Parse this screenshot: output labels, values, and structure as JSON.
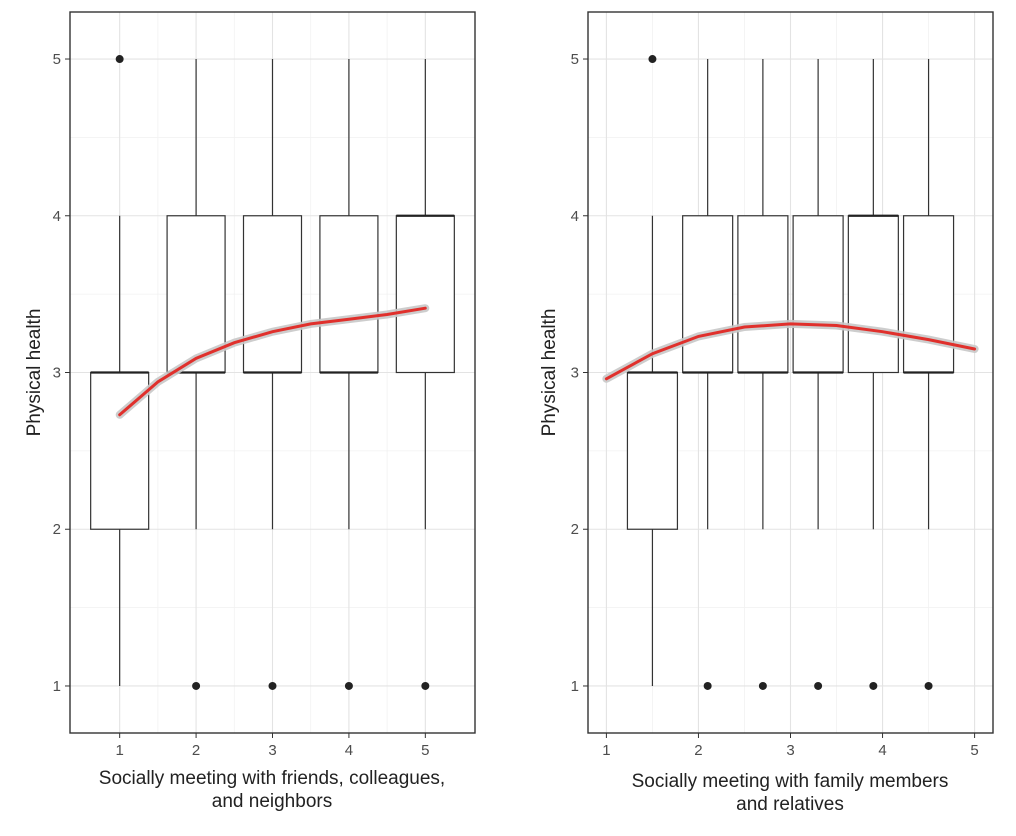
{
  "chart_data": [
    {
      "type": "box",
      "xlabel": [
        "Socially meeting with friends, colleagues,",
        "and neighbors"
      ],
      "ylabel": "Physical health",
      "xlim": [
        0.35,
        5.65
      ],
      "ylim": [
        0.7,
        5.3
      ],
      "x_ticks": [
        1,
        2,
        3,
        4,
        5
      ],
      "y_ticks": [
        1,
        2,
        3,
        4,
        5
      ],
      "grid": true,
      "boxes": [
        {
          "x": 1,
          "lower_whisker": 1,
          "q1": 2,
          "median": 3,
          "q3": 3,
          "upper_whisker": 4,
          "outliers": [
            5
          ]
        },
        {
          "x": 2,
          "lower_whisker": 2,
          "q1": 3,
          "median": 3,
          "q3": 4,
          "upper_whisker": 5,
          "outliers": [
            1
          ]
        },
        {
          "x": 3,
          "lower_whisker": 2,
          "q1": 3,
          "median": 3,
          "q3": 4,
          "upper_whisker": 5,
          "outliers": [
            1
          ]
        },
        {
          "x": 4,
          "lower_whisker": 2,
          "q1": 3,
          "median": 3,
          "q3": 4,
          "upper_whisker": 5,
          "outliers": [
            1
          ]
        },
        {
          "x": 5,
          "lower_whisker": 2,
          "q1": 3,
          "median": 4,
          "q3": 4,
          "upper_whisker": 5,
          "outliers": [
            1
          ]
        }
      ],
      "smooth_line": {
        "color": "#e0302c",
        "x": [
          1.0,
          1.5,
          2.0,
          2.5,
          3.0,
          3.5,
          4.0,
          4.5,
          5.0
        ],
        "y": [
          2.73,
          2.94,
          3.09,
          3.19,
          3.26,
          3.31,
          3.34,
          3.37,
          3.41
        ]
      }
    },
    {
      "type": "box",
      "xlabel": [
        "Socially meeting with family members",
        "and relatives"
      ],
      "ylabel": "Physical health",
      "xlim": [
        0.8,
        5.2
      ],
      "ylim": [
        0.7,
        5.3
      ],
      "x_ticks": [
        1,
        2,
        3,
        4,
        5
      ],
      "y_ticks": [
        1,
        2,
        3,
        4,
        5
      ],
      "grid": true,
      "boxes": [
        {
          "x": 1.5,
          "lower_whisker": 1,
          "q1": 2,
          "median": 3,
          "q3": 3,
          "upper_whisker": 4,
          "outliers": [
            5
          ]
        },
        {
          "x": 2.1,
          "lower_whisker": 2,
          "q1": 3,
          "median": 3,
          "q3": 4,
          "upper_whisker": 5,
          "outliers": [
            1
          ]
        },
        {
          "x": 2.7,
          "lower_whisker": 2,
          "q1": 3,
          "median": 3,
          "q3": 4,
          "upper_whisker": 5,
          "outliers": [
            1
          ]
        },
        {
          "x": 3.3,
          "lower_whisker": 2,
          "q1": 3,
          "median": 3,
          "q3": 4,
          "upper_whisker": 5,
          "outliers": [
            1
          ]
        },
        {
          "x": 3.9,
          "lower_whisker": 2,
          "q1": 3,
          "median": 4,
          "q3": 4,
          "upper_whisker": 5,
          "outliers": [
            1
          ]
        },
        {
          "x": 4.5,
          "lower_whisker": 2,
          "q1": 3,
          "median": 3,
          "q3": 4,
          "upper_whisker": 5,
          "outliers": [
            1
          ]
        }
      ],
      "smooth_line": {
        "color": "#e0302c",
        "x": [
          1.0,
          1.5,
          2.0,
          2.5,
          3.0,
          3.5,
          4.0,
          4.5,
          5.0
        ],
        "y": [
          2.96,
          3.12,
          3.23,
          3.29,
          3.31,
          3.3,
          3.26,
          3.21,
          3.15
        ]
      }
    }
  ]
}
